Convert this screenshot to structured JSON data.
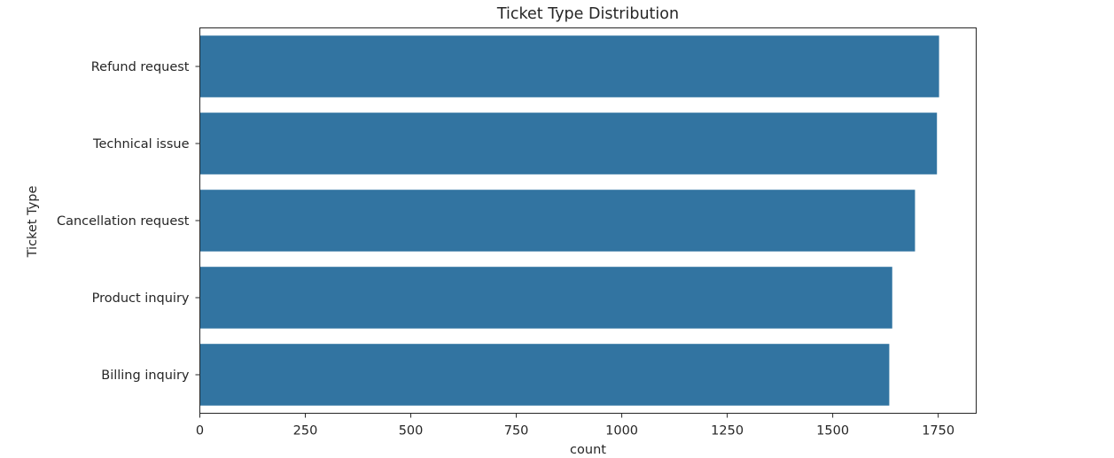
{
  "chart_data": {
    "type": "bar",
    "orientation": "horizontal",
    "title": "Ticket Type Distribution",
    "xlabel": "count",
    "ylabel": "Ticket Type",
    "categories": [
      "Refund request",
      "Technical issue",
      "Cancellation request",
      "Product inquiry",
      "Billing inquiry"
    ],
    "values": [
      1752,
      1747,
      1695,
      1641,
      1634
    ],
    "xlim": [
      0,
      1840
    ],
    "xticks": [
      0,
      250,
      500,
      750,
      1000,
      1250,
      1500,
      1750
    ],
    "grid": false,
    "bar_color": "#3274a1",
    "axis_color": "#262626"
  }
}
